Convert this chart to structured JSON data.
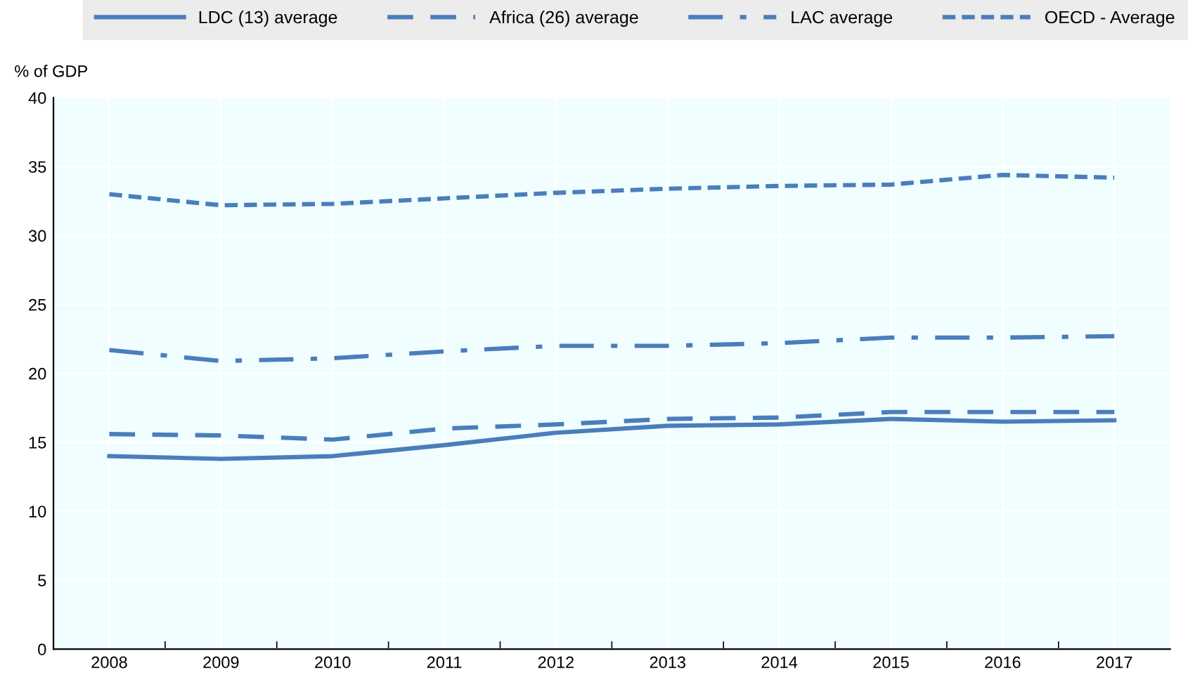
{
  "chart_data": {
    "type": "line",
    "ylabel": "% of GDP",
    "categories": [
      "2008",
      "2009",
      "2010",
      "2011",
      "2012",
      "2013",
      "2014",
      "2015",
      "2016",
      "2017"
    ],
    "ylim": [
      0,
      40
    ],
    "yticks": [
      0,
      5,
      10,
      15,
      20,
      25,
      30,
      35,
      40
    ],
    "grid": true,
    "legend": "top",
    "series": [
      {
        "name": "LDC (13) average",
        "color": "#4a7ebb",
        "line_style": "solid",
        "values": [
          14.0,
          13.8,
          14.0,
          14.8,
          15.7,
          16.2,
          16.3,
          16.7,
          16.5,
          16.6
        ]
      },
      {
        "name": "Africa (26) average",
        "color": "#4a7ebb",
        "line_style": "dashed",
        "values": [
          15.6,
          15.5,
          15.2,
          16.0,
          16.3,
          16.7,
          16.8,
          17.2,
          17.2,
          17.2
        ]
      },
      {
        "name": "LAC average",
        "color": "#4a7ebb",
        "line_style": "dashdot",
        "values": [
          21.7,
          20.9,
          21.1,
          21.6,
          22.0,
          22.0,
          22.2,
          22.6,
          22.6,
          22.7
        ]
      },
      {
        "name": "OECD - Average",
        "color": "#4a7ebb",
        "line_style": "dotted",
        "values": [
          33.0,
          32.2,
          32.3,
          32.7,
          33.1,
          33.4,
          33.6,
          33.7,
          34.4,
          34.2
        ]
      }
    ]
  }
}
